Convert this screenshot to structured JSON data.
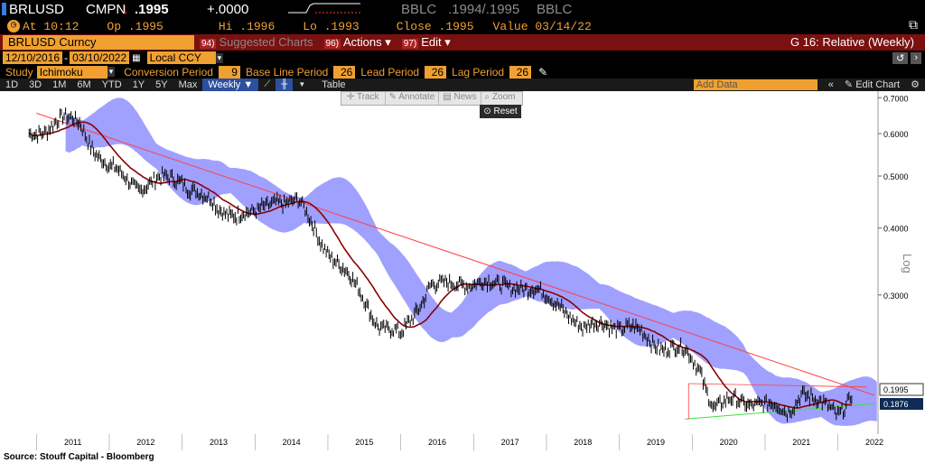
{
  "quote": {
    "ticker": "BRLUSD",
    "source": "CMPN",
    "arrow": "↓",
    "last": ".1995",
    "change": "+.0000",
    "bid_src": "BBLC",
    "bid_ask": ".1994/.1995",
    "ask_src": "BBLC",
    "at_label": "At",
    "time": "10:12",
    "open_label": "Op",
    "open": ".1995",
    "high_label": "Hi",
    "high": ".1996",
    "low_label": "Lo",
    "low": ".1993",
    "close_label": "Close",
    "close": ".1995",
    "value_label": "Value",
    "value": "03/14/22"
  },
  "function_bar": {
    "security": "BRLUSD Curncy",
    "suggested_num": "94)",
    "suggested": "Suggested Charts",
    "actions_num": "96)",
    "actions": "Actions",
    "edit_num": "97)",
    "edit": "Edit",
    "chart_title": "G 16: Relative (Weekly)"
  },
  "dates": {
    "start": "12/10/2016",
    "end": "03/10/2022",
    "currency": "Local CCY"
  },
  "study": {
    "label": "Study",
    "name": "Ichimoku",
    "conv_label": "Conversion Period",
    "conv": "9",
    "base_label": "Base Line Period",
    "base": "26",
    "lead_label": "Lead Period",
    "lead": "26",
    "lag_label": "Lag Period",
    "lag": "26"
  },
  "toolbar": {
    "ranges": [
      "1D",
      "3D",
      "1M",
      "6M",
      "YTD",
      "1Y",
      "5Y",
      "Max"
    ],
    "frequency": "Weekly",
    "table": "Table",
    "add_data": "Add Data",
    "edit_chart": "Edit Chart"
  },
  "chart_tools": {
    "track": "Track",
    "annotate": "Annotate",
    "news": "News",
    "zoom": "Zoom",
    "reset": "Reset"
  },
  "colors": {
    "price": "#000000",
    "moving_avg": "#8b0000",
    "cloud": "#8080ff",
    "resistance": "#ff4040",
    "support": "#40e040"
  },
  "chart_data": {
    "type": "line",
    "scale": "log",
    "ylabel": "Log",
    "ylim": [
      0.165,
      0.72
    ],
    "yticks": [
      "0.7000",
      "0.6000",
      "0.5000",
      "0.4000",
      "0.3000"
    ],
    "ytick_values": [
      0.7,
      0.6,
      0.5,
      0.4,
      0.3
    ],
    "x_years": [
      "2011",
      "2012",
      "2013",
      "2014",
      "2015",
      "2016",
      "2017",
      "2018",
      "2019",
      "2020",
      "2021",
      "2022"
    ],
    "last_label": "0.1995",
    "last_value": 0.1995,
    "ma_label": "0.1876",
    "ma_value": 0.1876,
    "price_weekly_approx": {
      "x": [
        2010.9,
        2011.3,
        2011.6,
        2011.8,
        2012.0,
        2012.4,
        2012.7,
        2013.0,
        2013.3,
        2013.5,
        2013.8,
        2014.0,
        2014.3,
        2014.6,
        2014.9,
        2015.1,
        2015.3,
        2015.5,
        2015.7,
        2016.0,
        2016.2,
        2016.4,
        2016.6,
        2016.8,
        2017.0,
        2017.3,
        2017.6,
        2017.9,
        2018.2,
        2018.5,
        2018.8,
        2019.0,
        2019.3,
        2019.6,
        2019.9,
        2020.1,
        2020.3,
        2020.6,
        2020.9,
        2021.1,
        2021.3,
        2021.5,
        2021.8,
        2022.0,
        2022.2
      ],
      "y": [
        0.595,
        0.635,
        0.63,
        0.56,
        0.515,
        0.48,
        0.49,
        0.495,
        0.455,
        0.43,
        0.43,
        0.42,
        0.455,
        0.445,
        0.38,
        0.35,
        0.32,
        0.295,
        0.265,
        0.25,
        0.28,
        0.315,
        0.31,
        0.315,
        0.32,
        0.31,
        0.315,
        0.3,
        0.29,
        0.255,
        0.27,
        0.26,
        0.255,
        0.24,
        0.235,
        0.22,
        0.185,
        0.19,
        0.19,
        0.185,
        0.18,
        0.2,
        0.185,
        0.18,
        0.1995
      ]
    },
    "trend_lines": [
      {
        "name": "resistance",
        "x": [
          2011.0,
          2022.5
        ],
        "y": [
          0.655,
          0.195
        ]
      },
      {
        "name": "support",
        "x": [
          2019.9,
          2022.5
        ],
        "y": [
          0.176,
          0.188
        ]
      }
    ],
    "source_note": "Source: Stouff Capital - Bloomberg"
  }
}
